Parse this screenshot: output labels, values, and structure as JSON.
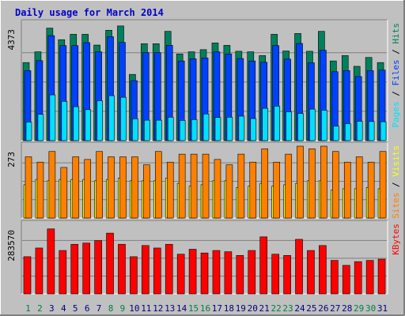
{
  "title": "Daily usage for March 2014",
  "colors": {
    "background": "#c0c0c0",
    "title": "#0000cc",
    "hits": "#00805c",
    "files": "#0040ff",
    "pages": "#00e0ff",
    "visits": "#ff8000",
    "sites": "#ffff00",
    "kbytes": "#ff0000",
    "weekday_label": "#000080",
    "weekend_label": "#008040"
  },
  "chart_data": [
    {
      "type": "bar",
      "panel": "hits-files-pages",
      "ymax_label": "4373",
      "ylim": [
        0,
        4373
      ],
      "legend_right": [
        {
          "text": "Pages",
          "color": "#00e0ff"
        },
        {
          "text": " / ",
          "color": "#000000"
        },
        {
          "text": "Files",
          "color": "#0040ff"
        },
        {
          "text": " / ",
          "color": "#000000"
        },
        {
          "text": "Hits",
          "color": "#00805c"
        }
      ],
      "categories": [
        "1",
        "2",
        "3",
        "4",
        "5",
        "6",
        "7",
        "8",
        "9",
        "10",
        "11",
        "12",
        "13",
        "14",
        "15",
        "16",
        "17",
        "18",
        "19",
        "20",
        "21",
        "22",
        "23",
        "24",
        "25",
        "26",
        "27",
        "28",
        "29",
        "30",
        "31"
      ],
      "series": [
        {
          "name": "Hits",
          "values": [
            2900,
            3300,
            4180,
            3750,
            3950,
            3950,
            3550,
            4100,
            4260,
            2460,
            3600,
            3600,
            4060,
            3220,
            3300,
            3380,
            3630,
            3540,
            3320,
            3300,
            3160,
            3950,
            3330,
            3980,
            3320,
            4060,
            2960,
            3160,
            2760,
            3090,
            2900
          ]
        },
        {
          "name": "Files",
          "values": [
            2600,
            2970,
            3900,
            3530,
            3530,
            3640,
            3300,
            3860,
            3650,
            2230,
            3270,
            3270,
            3540,
            2960,
            3040,
            3070,
            3300,
            3220,
            3050,
            2960,
            2910,
            3530,
            3030,
            3610,
            2890,
            3360,
            2560,
            2600,
            2380,
            2600,
            2620
          ]
        },
        {
          "name": "Pages",
          "values": [
            690,
            980,
            1700,
            1460,
            1260,
            1150,
            1480,
            1670,
            1610,
            810,
            760,
            760,
            870,
            750,
            780,
            990,
            860,
            870,
            910,
            820,
            1200,
            1280,
            1070,
            1010,
            1170,
            1130,
            540,
            630,
            720,
            710,
            700
          ]
        }
      ]
    },
    {
      "type": "bar",
      "panel": "visits-sites",
      "ymax_label": "273",
      "ylim": [
        0,
        273
      ],
      "legend_right": [
        {
          "text": "Sites",
          "color": "#ff8000"
        },
        {
          "text": " / ",
          "color": "#000000"
        },
        {
          "text": "Visits",
          "color": "#ffff00"
        }
      ],
      "categories": [
        "1",
        "2",
        "3",
        "4",
        "5",
        "6",
        "7",
        "8",
        "9",
        "10",
        "11",
        "12",
        "13",
        "14",
        "15",
        "16",
        "17",
        "18",
        "19",
        "20",
        "21",
        "22",
        "23",
        "24",
        "25",
        "26",
        "27",
        "28",
        "29",
        "30",
        "31"
      ],
      "series": [
        {
          "name": "Sites",
          "values": [
            230,
            210,
            250,
            190,
            230,
            220,
            250,
            230,
            230,
            230,
            200,
            250,
            210,
            240,
            240,
            240,
            220,
            200,
            240,
            210,
            260,
            210,
            240,
            270,
            260,
            270,
            250,
            210,
            230,
            210,
            250
          ]
        },
        {
          "name": "Visits",
          "values": [
            125,
            145,
            140,
            145,
            145,
            145,
            140,
            145,
            150,
            140,
            140,
            140,
            150,
            130,
            120,
            125,
            140,
            140,
            115,
            120,
            130,
            120,
            125,
            130,
            140,
            140,
            105,
            110,
            110,
            115,
            110
          ]
        }
      ]
    },
    {
      "type": "bar",
      "panel": "kbytes",
      "ymax_label": "283570",
      "ylim": [
        0,
        283570
      ],
      "legend_right": [
        {
          "text": "KBytes",
          "color": "#ff0000"
        }
      ],
      "categories": [
        "1",
        "2",
        "3",
        "4",
        "5",
        "6",
        "7",
        "8",
        "9",
        "10",
        "11",
        "12",
        "13",
        "14",
        "15",
        "16",
        "17",
        "18",
        "19",
        "20",
        "21",
        "22",
        "23",
        "24",
        "25",
        "26",
        "27",
        "28",
        "29",
        "30",
        "31"
      ],
      "series": [
        {
          "name": "KBytes",
          "values": [
            150000,
            185000,
            262000,
            175000,
            200000,
            205000,
            215000,
            245000,
            200000,
            150000,
            195000,
            185000,
            200000,
            160000,
            180000,
            165000,
            175000,
            170000,
            155000,
            175000,
            230000,
            160000,
            155000,
            220000,
            175000,
            195000,
            135000,
            115000,
            130000,
            135000,
            140000
          ]
        }
      ]
    }
  ],
  "days": [
    {
      "label": "1",
      "weekend": true
    },
    {
      "label": "2",
      "weekend": true
    },
    {
      "label": "3",
      "weekend": false
    },
    {
      "label": "4",
      "weekend": false
    },
    {
      "label": "5",
      "weekend": false
    },
    {
      "label": "6",
      "weekend": false
    },
    {
      "label": "7",
      "weekend": false
    },
    {
      "label": "8",
      "weekend": true
    },
    {
      "label": "9",
      "weekend": true
    },
    {
      "label": "10",
      "weekend": false
    },
    {
      "label": "11",
      "weekend": false
    },
    {
      "label": "12",
      "weekend": false
    },
    {
      "label": "13",
      "weekend": false
    },
    {
      "label": "14",
      "weekend": false
    },
    {
      "label": "15",
      "weekend": true
    },
    {
      "label": "16",
      "weekend": true
    },
    {
      "label": "17",
      "weekend": false
    },
    {
      "label": "18",
      "weekend": false
    },
    {
      "label": "19",
      "weekend": false
    },
    {
      "label": "20",
      "weekend": false
    },
    {
      "label": "21",
      "weekend": false
    },
    {
      "label": "22",
      "weekend": true
    },
    {
      "label": "23",
      "weekend": true
    },
    {
      "label": "24",
      "weekend": false
    },
    {
      "label": "25",
      "weekend": false
    },
    {
      "label": "26",
      "weekend": false
    },
    {
      "label": "27",
      "weekend": false
    },
    {
      "label": "28",
      "weekend": false
    },
    {
      "label": "29",
      "weekend": true
    },
    {
      "label": "30",
      "weekend": true
    },
    {
      "label": "31",
      "weekend": false
    }
  ]
}
